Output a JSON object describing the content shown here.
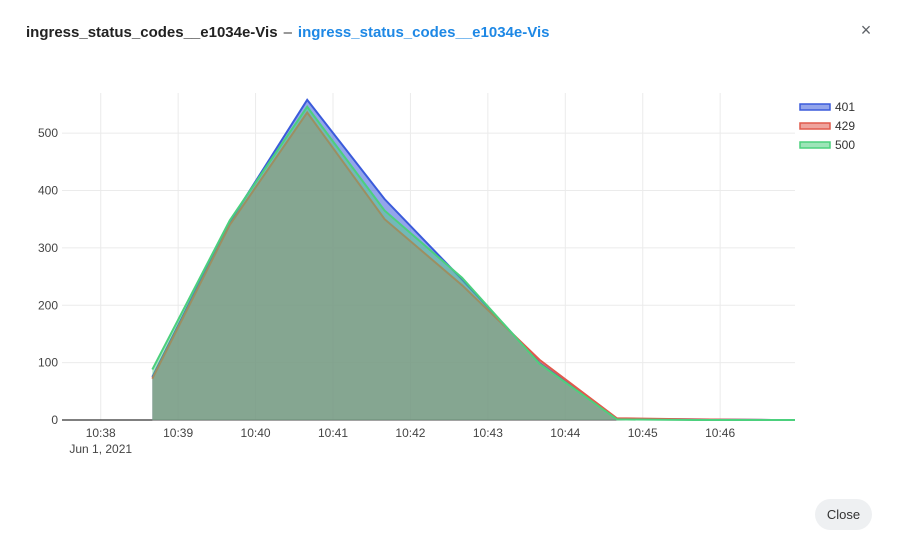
{
  "dialog": {
    "title": "ingress_status_codes__e1034e-Vis",
    "separator": "–",
    "link": "ingress_status_codes__e1034e-Vis",
    "close_glyph": "×",
    "close_button": "Close"
  },
  "chart_data": {
    "type": "area",
    "x": [
      "10:38:40",
      "10:39:40",
      "10:40:40",
      "10:41:40",
      "10:42:40",
      "10:43:40",
      "10:44:40",
      "10:45:40",
      "10:46:40"
    ],
    "x_ticks": [
      "10:38",
      "10:39",
      "10:40",
      "10:41",
      "10:42",
      "10:43",
      "10:44",
      "10:45",
      "10:46"
    ],
    "x_date_label": "Jun 1, 2021",
    "ylim": [
      0,
      570
    ],
    "y_ticks": [
      0,
      100,
      200,
      300,
      400,
      500
    ],
    "grid": true,
    "legend_position": "top-right",
    "series": [
      {
        "name": "401",
        "color": "#3b5bdb",
        "values": [
          75,
          345,
          558,
          385,
          245,
          100,
          2,
          1,
          0
        ]
      },
      {
        "name": "429",
        "color": "#e05a4c",
        "values": [
          72,
          340,
          536,
          350,
          235,
          105,
          3,
          1,
          0
        ]
      },
      {
        "name": "500",
        "color": "#4cd07d",
        "values": [
          88,
          348,
          546,
          365,
          248,
          98,
          1,
          0,
          0
        ]
      }
    ]
  }
}
